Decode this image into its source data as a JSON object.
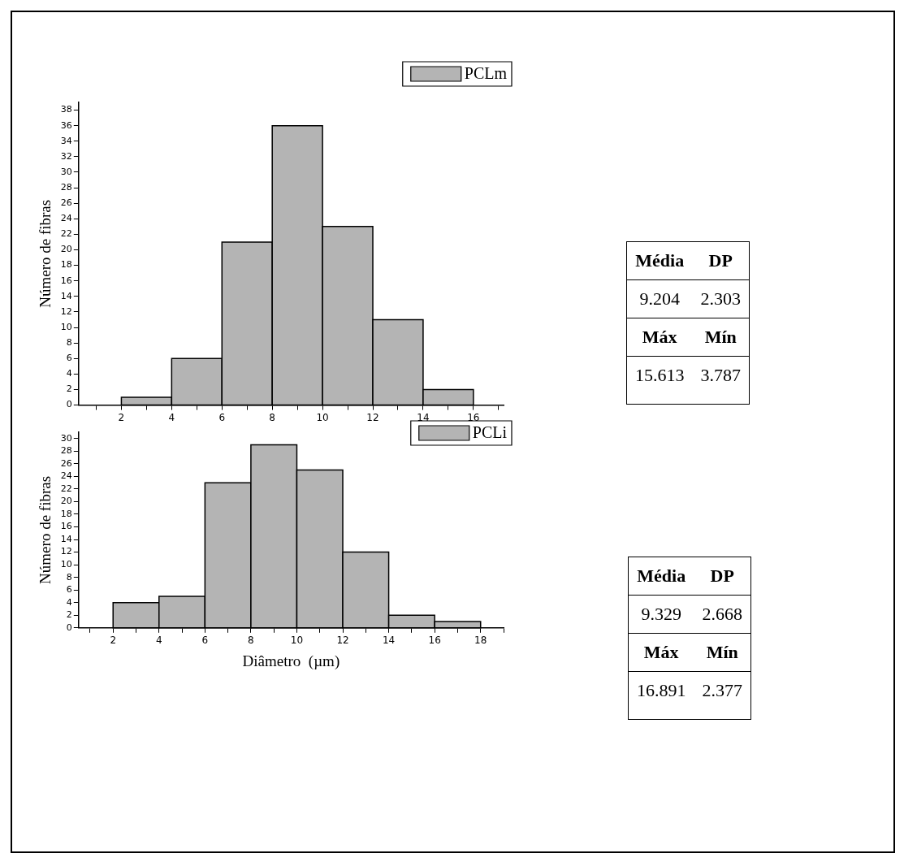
{
  "chart_data": [
    {
      "type": "histogram",
      "ylabel": "Número de fibras",
      "bins": [
        2,
        4,
        6,
        8,
        10,
        12,
        14,
        16
      ],
      "legend": "top right",
      "grid": false,
      "series": [
        {
          "name": "PCLm",
          "color": "#b4b4b4",
          "values": [
            1,
            6,
            21,
            36,
            23,
            11,
            2
          ]
        }
      ],
      "xlim": [
        0.3,
        17.2
      ],
      "xticks": [
        {
          "value": 1,
          "label": null
        },
        2,
        {
          "value": 3,
          "label": null
        },
        4,
        {
          "value": 5,
          "label": null
        },
        6,
        {
          "value": 7,
          "label": null
        },
        8,
        {
          "value": 9,
          "label": null
        },
        10,
        {
          "value": 11,
          "label": null
        },
        12,
        {
          "value": 13,
          "label": null
        },
        14,
        {
          "value": 15,
          "label": null
        },
        16,
        {
          "value": 17,
          "label": null
        }
      ],
      "ylim": [
        0,
        39
      ],
      "yticks": [
        0,
        2,
        4,
        6,
        8,
        10,
        12,
        14,
        16,
        18,
        20,
        22,
        24,
        26,
        28,
        30,
        32,
        34,
        36,
        38
      ]
    },
    {
      "type": "other",
      "categories": [
        "Média",
        "DP",
        "Máx",
        "Mín"
      ],
      "values": [
        9.204,
        2.303,
        15.613,
        3.787
      ],
      "data_labels": true
    },
    {
      "type": "histogram",
      "xlabel": "Diâmetro  (µm)",
      "ylabel": "Número de fibras",
      "bins": [
        2,
        4,
        6,
        8,
        10,
        12,
        14,
        16,
        18
      ],
      "legend": "top right",
      "grid": false,
      "series": [
        {
          "name": "PCLi",
          "color": "#b4b4b4",
          "values": [
            4,
            5,
            23,
            29,
            25,
            12,
            2,
            1
          ]
        }
      ],
      "xlim": [
        0.5,
        19
      ],
      "xticks": [
        {
          "value": 1,
          "label": null
        },
        2,
        {
          "value": 3,
          "label": null
        },
        4,
        {
          "value": 5,
          "label": null
        },
        6,
        {
          "value": 7,
          "label": null
        },
        8,
        {
          "value": 9,
          "label": null
        },
        10,
        {
          "value": 11,
          "label": null
        },
        12,
        {
          "value": 13,
          "label": null
        },
        14,
        {
          "value": 15,
          "label": null
        },
        16,
        {
          "value": 17,
          "label": null
        },
        18,
        {
          "value": 19,
          "label": null
        }
      ],
      "ylim": [
        0,
        31
      ],
      "yticks": [
        0,
        2,
        4,
        6,
        8,
        10,
        12,
        14,
        16,
        18,
        20,
        22,
        24,
        26,
        28,
        30
      ]
    },
    {
      "type": "other",
      "categories": [
        "Média",
        "DP",
        "Máx",
        "Mín"
      ],
      "values": [
        9.329,
        2.668,
        16.891,
        2.377
      ],
      "data_labels": true
    }
  ]
}
